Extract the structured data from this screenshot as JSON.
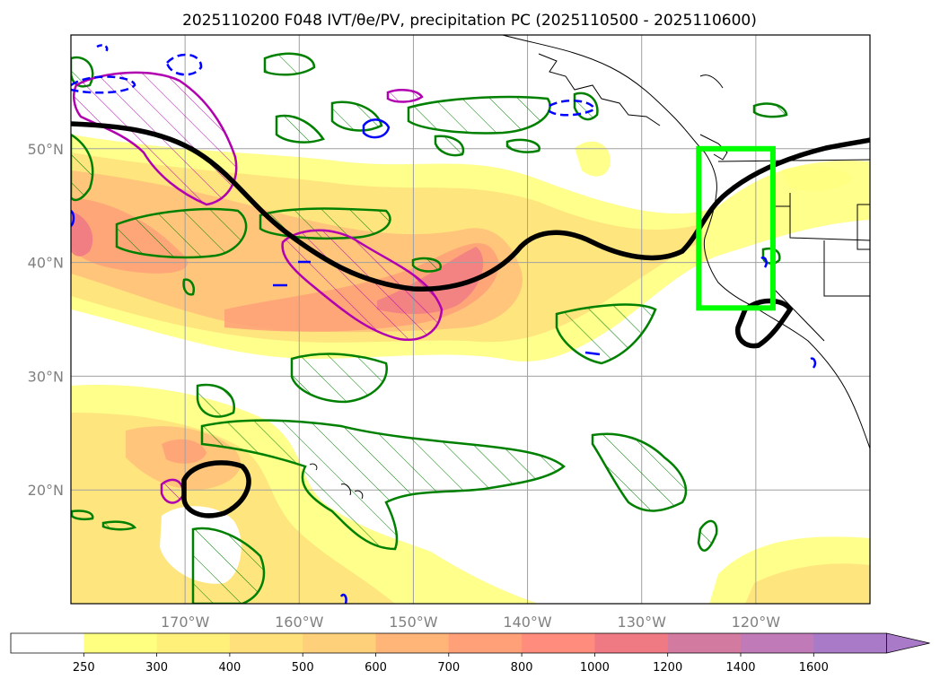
{
  "title": "2025110200 F048 IVT/θe/PV, precipitation PC (2025110500 - 2025110600)",
  "map": {
    "lat_labels": [
      "50°N",
      "40°N",
      "30°N",
      "20°N"
    ],
    "lon_labels": [
      "170°W",
      "160°W",
      "150°W",
      "140°W",
      "130°W",
      "120°W"
    ],
    "lat_values": [
      50,
      40,
      30,
      20
    ],
    "lon_values": [
      -170,
      -160,
      -150,
      -140,
      -130,
      -120
    ],
    "extent": {
      "lon_min": -180,
      "lon_max": -110,
      "lat_min": 10,
      "lat_max": 60
    },
    "highlight_box": {
      "lon_min": -125,
      "lon_max": -118.5,
      "lat_min": 36,
      "lat_max": 50,
      "color": "#00ff00"
    }
  },
  "colorbar": {
    "ticks": [
      "250",
      "300",
      "400",
      "500",
      "600",
      "700",
      "800",
      "1000",
      "1200",
      "1400",
      "1600"
    ],
    "colors": [
      "#ffffff",
      "#ffff80",
      "#fff07a",
      "#ffe07a",
      "#ffd07a",
      "#ffb478",
      "#ffa078",
      "#ff8c7c",
      "#f07a84",
      "#d27aa0",
      "#c07ab8",
      "#a87ac8"
    ],
    "extend": "max"
  },
  "legend_colors": {
    "theta_e_line": "#000000",
    "pv_hatch": "#b000b0",
    "green_hatch": "#008000",
    "blue_dashed": "#0000ff"
  }
}
